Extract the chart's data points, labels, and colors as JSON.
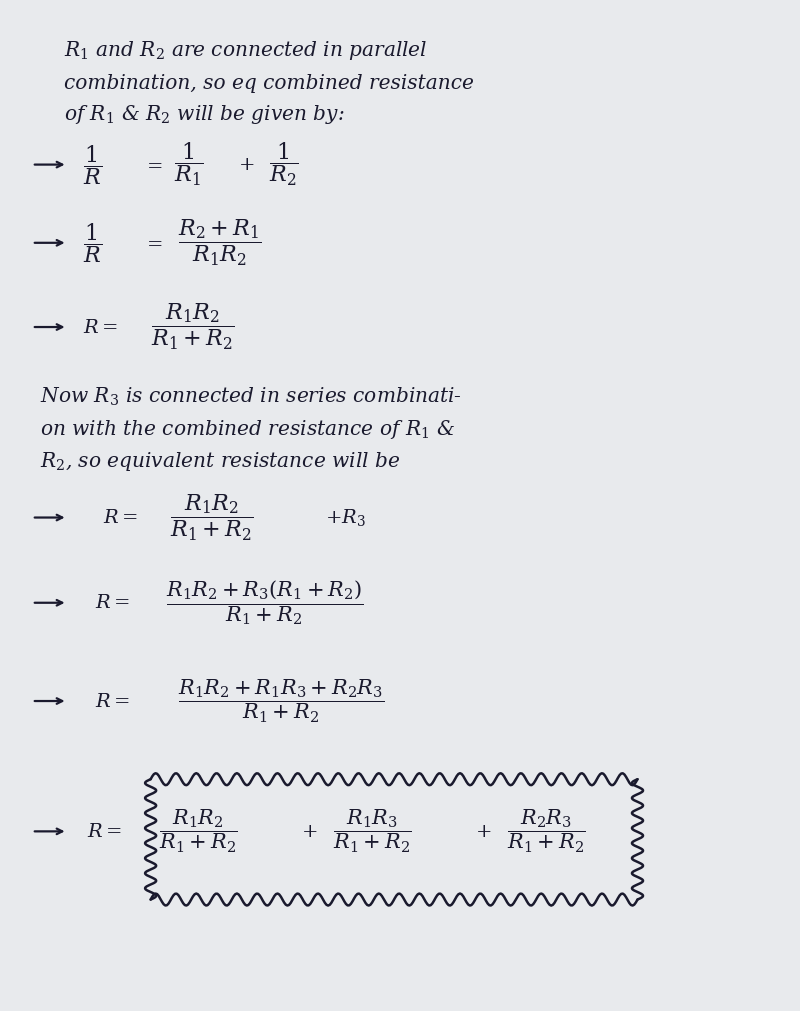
{
  "bg_color": "#dce0e8",
  "paper_color": "#e8eaed",
  "text_color": "#1a1a2e",
  "fig_width": 8.0,
  "fig_height": 10.11,
  "para1": [
    "R$_1$ and R$_2$ are connected in parallel",
    "combination, so eq combined resistance",
    "of R$_1$ & R$_2$ will be given by:"
  ],
  "para2": [
    "Now R$_3$ is connected in series combinati-",
    "on with the combined resistance of R$_1$ &",
    "R$_2$, so equivalent resistance will be"
  ],
  "arrow_color": "#1a1a2e",
  "line_color": "#1a1a2e",
  "eq1_lhs": "$\\dfrac{1}{R}$",
  "eq1_rhs": "$= \\dfrac{1}{R_1} + \\dfrac{1}{R_2}$",
  "eq2_lhs": "$\\dfrac{1}{R}$",
  "eq2_rhs": "$= \\dfrac{R_2 + R_1}{R_1 R_2}$",
  "eq3_lhs": "R",
  "eq3_rhs": "$= \\dfrac{R_1 R_2}{R_1 + R_2}$",
  "eq4_lhs": "R",
  "eq4_rhs": "$= \\dfrac{R_1 R_2}{R_1 + R_2} + R_3$",
  "eq5_lhs": "R",
  "eq5_rhs": "$= \\dfrac{R_1 R_2 + R_3(R_1 + R_2)}{R_1 + R_2}$",
  "eq6_lhs": "R",
  "eq6_rhs": "$= \\dfrac{R_1 R_2 + R_1 R_3 + R_2 R_3}{R_1 + R_2}$",
  "eq7_lhs": "R",
  "eq7_rhs": "$= \\dfrac{R_1 R_2}{R_1 + R_2} + \\dfrac{R_1 R_3}{R_1 + R_2} + \\dfrac{R_2 R_3}{R_1 + R_2}$"
}
